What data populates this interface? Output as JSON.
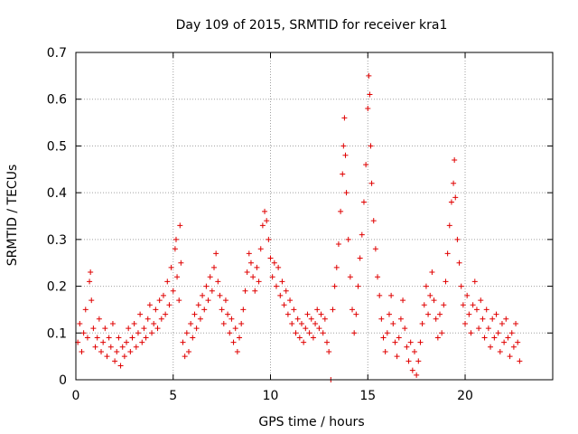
{
  "chart_data": {
    "type": "scatter",
    "title": "Day 109 of 2015, SRMTID for receiver kra1",
    "xlabel": "GPS time / hours",
    "ylabel": "SRMTID / TECUs",
    "xlim": [
      0,
      24.5
    ],
    "ylim": [
      0,
      0.7
    ],
    "xticks": [
      0,
      5,
      10,
      15,
      20
    ],
    "xtick_labels": [
      "0",
      "5",
      "10",
      "15",
      "20"
    ],
    "yticks": [
      0,
      0.1,
      0.2,
      0.3,
      0.4,
      0.5,
      0.6,
      0.7
    ],
    "ytick_labels": [
      "0",
      "0.1",
      "0.2",
      "0.3",
      "0.4",
      "0.5",
      "0.6",
      "0.7"
    ],
    "grid": true,
    "marker": "plus",
    "color": "#e00000",
    "series": [
      {
        "name": "kra1",
        "points": [
          [
            0.1,
            0.08
          ],
          [
            0.2,
            0.12
          ],
          [
            0.3,
            0.06
          ],
          [
            0.4,
            0.1
          ],
          [
            0.5,
            0.15
          ],
          [
            0.6,
            0.09
          ],
          [
            0.7,
            0.21
          ],
          [
            0.75,
            0.23
          ],
          [
            0.8,
            0.17
          ],
          [
            0.9,
            0.11
          ],
          [
            1.0,
            0.07
          ],
          [
            1.1,
            0.09
          ],
          [
            1.2,
            0.13
          ],
          [
            1.3,
            0.06
          ],
          [
            1.4,
            0.08
          ],
          [
            1.5,
            0.11
          ],
          [
            1.6,
            0.05
          ],
          [
            1.7,
            0.09
          ],
          [
            1.8,
            0.07
          ],
          [
            1.9,
            0.12
          ],
          [
            2.0,
            0.04
          ],
          [
            2.1,
            0.06
          ],
          [
            2.2,
            0.09
          ],
          [
            2.3,
            0.03
          ],
          [
            2.4,
            0.07
          ],
          [
            2.5,
            0.05
          ],
          [
            2.6,
            0.08
          ],
          [
            2.7,
            0.11
          ],
          [
            2.8,
            0.06
          ],
          [
            2.9,
            0.09
          ],
          [
            3.0,
            0.12
          ],
          [
            3.1,
            0.07
          ],
          [
            3.2,
            0.1
          ],
          [
            3.3,
            0.14
          ],
          [
            3.4,
            0.08
          ],
          [
            3.5,
            0.11
          ],
          [
            3.6,
            0.09
          ],
          [
            3.7,
            0.13
          ],
          [
            3.8,
            0.16
          ],
          [
            3.9,
            0.1
          ],
          [
            4.0,
            0.12
          ],
          [
            4.1,
            0.15
          ],
          [
            4.2,
            0.11
          ],
          [
            4.3,
            0.17
          ],
          [
            4.4,
            0.13
          ],
          [
            4.5,
            0.18
          ],
          [
            4.6,
            0.14
          ],
          [
            4.7,
            0.21
          ],
          [
            4.8,
            0.16
          ],
          [
            4.9,
            0.24
          ],
          [
            5.0,
            0.19
          ],
          [
            5.1,
            0.28
          ],
          [
            5.15,
            0.3
          ],
          [
            5.2,
            0.22
          ],
          [
            5.3,
            0.17
          ],
          [
            5.35,
            0.33
          ],
          [
            5.4,
            0.25
          ],
          [
            5.5,
            0.08
          ],
          [
            5.6,
            0.05
          ],
          [
            5.7,
            0.1
          ],
          [
            5.8,
            0.06
          ],
          [
            5.9,
            0.12
          ],
          [
            6.0,
            0.09
          ],
          [
            6.1,
            0.14
          ],
          [
            6.2,
            0.11
          ],
          [
            6.3,
            0.16
          ],
          [
            6.4,
            0.13
          ],
          [
            6.5,
            0.18
          ],
          [
            6.6,
            0.15
          ],
          [
            6.7,
            0.2
          ],
          [
            6.8,
            0.17
          ],
          [
            6.9,
            0.22
          ],
          [
            7.0,
            0.19
          ],
          [
            7.1,
            0.24
          ],
          [
            7.2,
            0.27
          ],
          [
            7.3,
            0.21
          ],
          [
            7.4,
            0.18
          ],
          [
            7.5,
            0.15
          ],
          [
            7.6,
            0.12
          ],
          [
            7.7,
            0.17
          ],
          [
            7.8,
            0.14
          ],
          [
            7.9,
            0.1
          ],
          [
            8.0,
            0.13
          ],
          [
            8.1,
            0.08
          ],
          [
            8.2,
            0.11
          ],
          [
            8.3,
            0.06
          ],
          [
            8.4,
            0.09
          ],
          [
            8.5,
            0.12
          ],
          [
            8.6,
            0.15
          ],
          [
            8.7,
            0.19
          ],
          [
            8.8,
            0.23
          ],
          [
            8.9,
            0.27
          ],
          [
            9.0,
            0.25
          ],
          [
            9.1,
            0.22
          ],
          [
            9.2,
            0.19
          ],
          [
            9.3,
            0.24
          ],
          [
            9.4,
            0.21
          ],
          [
            9.5,
            0.28
          ],
          [
            9.6,
            0.33
          ],
          [
            9.7,
            0.36
          ],
          [
            9.8,
            0.34
          ],
          [
            9.9,
            0.3
          ],
          [
            10.0,
            0.26
          ],
          [
            10.1,
            0.22
          ],
          [
            10.2,
            0.25
          ],
          [
            10.3,
            0.2
          ],
          [
            10.4,
            0.24
          ],
          [
            10.5,
            0.18
          ],
          [
            10.6,
            0.21
          ],
          [
            10.7,
            0.16
          ],
          [
            10.8,
            0.19
          ],
          [
            10.9,
            0.14
          ],
          [
            11.0,
            0.17
          ],
          [
            11.1,
            0.12
          ],
          [
            11.2,
            0.15
          ],
          [
            11.3,
            0.1
          ],
          [
            11.4,
            0.13
          ],
          [
            11.5,
            0.09
          ],
          [
            11.6,
            0.12
          ],
          [
            11.7,
            0.08
          ],
          [
            11.8,
            0.11
          ],
          [
            11.9,
            0.14
          ],
          [
            12.0,
            0.1
          ],
          [
            12.1,
            0.13
          ],
          [
            12.2,
            0.09
          ],
          [
            12.3,
            0.12
          ],
          [
            12.4,
            0.15
          ],
          [
            12.5,
            0.11
          ],
          [
            12.6,
            0.14
          ],
          [
            12.7,
            0.1
          ],
          [
            12.8,
            0.13
          ],
          [
            12.9,
            0.08
          ],
          [
            13.0,
            0.06
          ],
          [
            13.1,
            0.0
          ],
          [
            13.2,
            0.15
          ],
          [
            13.3,
            0.2
          ],
          [
            13.4,
            0.24
          ],
          [
            13.5,
            0.29
          ],
          [
            13.6,
            0.36
          ],
          [
            13.7,
            0.44
          ],
          [
            13.75,
            0.5
          ],
          [
            13.8,
            0.56
          ],
          [
            13.85,
            0.48
          ],
          [
            13.9,
            0.4
          ],
          [
            14.0,
            0.3
          ],
          [
            14.1,
            0.22
          ],
          [
            14.2,
            0.15
          ],
          [
            14.3,
            0.1
          ],
          [
            14.4,
            0.14
          ],
          [
            14.5,
            0.2
          ],
          [
            14.6,
            0.26
          ],
          [
            14.7,
            0.31
          ],
          [
            14.8,
            0.38
          ],
          [
            14.9,
            0.46
          ],
          [
            15.0,
            0.58
          ],
          [
            15.05,
            0.65
          ],
          [
            15.1,
            0.61
          ],
          [
            15.15,
            0.5
          ],
          [
            15.2,
            0.42
          ],
          [
            15.3,
            0.34
          ],
          [
            15.4,
            0.28
          ],
          [
            15.5,
            0.22
          ],
          [
            15.6,
            0.18
          ],
          [
            15.7,
            0.13
          ],
          [
            15.8,
            0.09
          ],
          [
            15.9,
            0.06
          ],
          [
            16.0,
            0.1
          ],
          [
            16.1,
            0.14
          ],
          [
            16.2,
            0.18
          ],
          [
            16.3,
            0.12
          ],
          [
            16.4,
            0.08
          ],
          [
            16.5,
            0.05
          ],
          [
            16.6,
            0.09
          ],
          [
            16.7,
            0.13
          ],
          [
            16.8,
            0.17
          ],
          [
            16.9,
            0.11
          ],
          [
            17.0,
            0.07
          ],
          [
            17.1,
            0.04
          ],
          [
            17.2,
            0.08
          ],
          [
            17.3,
            0.02
          ],
          [
            17.4,
            0.06
          ],
          [
            17.5,
            0.01
          ],
          [
            17.6,
            0.04
          ],
          [
            17.7,
            0.08
          ],
          [
            17.8,
            0.12
          ],
          [
            17.9,
            0.16
          ],
          [
            18.0,
            0.2
          ],
          [
            18.1,
            0.14
          ],
          [
            18.2,
            0.18
          ],
          [
            18.3,
            0.23
          ],
          [
            18.4,
            0.17
          ],
          [
            18.5,
            0.13
          ],
          [
            18.6,
            0.09
          ],
          [
            18.7,
            0.14
          ],
          [
            18.8,
            0.1
          ],
          [
            18.9,
            0.16
          ],
          [
            19.0,
            0.21
          ],
          [
            19.1,
            0.27
          ],
          [
            19.2,
            0.33
          ],
          [
            19.3,
            0.38
          ],
          [
            19.4,
            0.42
          ],
          [
            19.45,
            0.47
          ],
          [
            19.5,
            0.39
          ],
          [
            19.6,
            0.3
          ],
          [
            19.7,
            0.25
          ],
          [
            19.8,
            0.2
          ],
          [
            19.9,
            0.16
          ],
          [
            20.0,
            0.12
          ],
          [
            20.1,
            0.18
          ],
          [
            20.2,
            0.14
          ],
          [
            20.3,
            0.1
          ],
          [
            20.4,
            0.16
          ],
          [
            20.5,
            0.21
          ],
          [
            20.6,
            0.15
          ],
          [
            20.7,
            0.11
          ],
          [
            20.8,
            0.17
          ],
          [
            20.9,
            0.13
          ],
          [
            21.0,
            0.09
          ],
          [
            21.1,
            0.15
          ],
          [
            21.2,
            0.11
          ],
          [
            21.3,
            0.07
          ],
          [
            21.4,
            0.13
          ],
          [
            21.5,
            0.09
          ],
          [
            21.6,
            0.14
          ],
          [
            21.7,
            0.1
          ],
          [
            21.8,
            0.06
          ],
          [
            21.9,
            0.12
          ],
          [
            22.0,
            0.08
          ],
          [
            22.1,
            0.13
          ],
          [
            22.2,
            0.09
          ],
          [
            22.3,
            0.05
          ],
          [
            22.4,
            0.1
          ],
          [
            22.5,
            0.07
          ],
          [
            22.6,
            0.12
          ],
          [
            22.7,
            0.08
          ],
          [
            22.8,
            0.04
          ]
        ]
      }
    ]
  }
}
